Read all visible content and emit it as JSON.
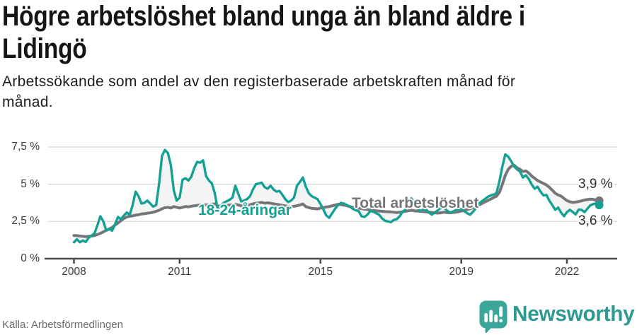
{
  "header": {
    "title_lines": [
      "Högre arbetslöshet bland unga än bland äldre i",
      "Lidingö"
    ],
    "subtitle_lines": [
      "Arbetssökande som andel av den registerbaserade arbetskraften månad för",
      "månad."
    ]
  },
  "footer": {
    "source": "Källa: Arbetsförmedlingen",
    "brand": "Newsworthy"
  },
  "colors": {
    "young": "#14a193",
    "total": "#75767a",
    "band_fill": "#f4f4f4",
    "grid": "#d8d8d8",
    "axis": "#4b4b4b",
    "logo_bubble": "#3aa69a",
    "logo_text": "#2d9a92"
  },
  "chart_data": {
    "type": "line",
    "title": "Högre arbetslöshet bland unga än bland äldre i Lidingö",
    "subtitle": "Arbetssökande som andel av den registerbaserade arbetskraften månad för månad.",
    "unit": "%",
    "x_start_year": 2008,
    "x_interval": "monthly",
    "grid": true,
    "ylim": [
      0,
      8.3
    ],
    "y_ticks": [
      {
        "label": "7,5 %",
        "value": 7.5
      },
      {
        "label": "5 %",
        "value": 5
      },
      {
        "label": "2,5 %",
        "value": 2.5
      },
      {
        "label": "0 %",
        "value": 0
      }
    ],
    "x_ticks": [
      {
        "label": "2008",
        "year": 2008
      },
      {
        "label": "2011",
        "year": 2011
      },
      {
        "label": "2015",
        "year": 2015
      },
      {
        "label": "2019",
        "year": 2019
      },
      {
        "label": "2022",
        "year": 2022
      }
    ],
    "series": [
      {
        "name": "18-24-åringar",
        "end_label": "3,6 %",
        "end_value": 3.6,
        "color": "#14a193",
        "values": [
          1.1,
          1.3,
          1.1,
          1.22,
          1.12,
          1.4,
          1.55,
          1.7,
          2.25,
          2.85,
          2.5,
          1.9,
          2.0,
          1.88,
          2.3,
          2.8,
          2.65,
          2.9,
          3.1,
          2.95,
          3.6,
          4.5,
          4.2,
          3.7,
          3.75,
          3.9,
          3.7,
          3.5,
          3.6,
          5.0,
          6.9,
          7.3,
          7.1,
          6.3,
          4.6,
          3.9,
          4.1,
          5.3,
          5.4,
          5.25,
          5.5,
          6.1,
          6.5,
          6.45,
          6.6,
          5.55,
          5.25,
          5.05,
          4.4,
          3.3,
          3.55,
          3.75,
          3.85,
          3.95,
          4.1,
          4.9,
          4.35,
          3.85,
          3.9,
          4.0,
          4.2,
          4.65,
          5.0,
          5.05,
          5.1,
          4.8,
          4.7,
          4.9,
          4.65,
          4.5,
          4.55,
          4.3,
          4.0,
          3.8,
          3.9,
          4.1,
          4.9,
          5.15,
          5.45,
          4.85,
          4.4,
          4.2,
          4.1,
          4.0,
          3.67,
          3.3,
          2.9,
          2.75,
          3.05,
          3.35,
          3.6,
          3.75,
          3.7,
          3.6,
          3.5,
          3.35,
          3.25,
          3.2,
          2.85,
          2.8,
          2.95,
          3.2,
          3.15,
          3.05,
          2.95,
          2.7,
          2.55,
          2.5,
          2.45,
          2.6,
          2.65,
          2.85,
          3.15,
          3.3,
          3.9,
          4.05,
          3.7,
          3.4,
          3.2,
          3.3,
          3.3,
          3.1,
          2.95,
          3.1,
          3.25,
          3.4,
          3.45,
          3.25,
          3.1,
          3.15,
          3.25,
          3.3,
          3.35,
          3.2,
          3.05,
          2.95,
          3.15,
          3.4,
          3.7,
          3.85,
          4.0,
          4.15,
          4.25,
          4.3,
          4.4,
          5.2,
          6.2,
          7.0,
          6.85,
          6.55,
          6.2,
          6.0,
          5.85,
          5.45,
          5.6,
          5.35,
          4.98,
          4.7,
          4.83,
          4.5,
          4.25,
          4.28,
          3.9,
          3.6,
          3.28,
          3.43,
          3.1,
          2.85,
          3.13,
          3.28,
          3.13,
          2.97,
          3.3,
          3.28,
          3.13,
          3.36,
          3.59,
          3.67,
          3.71,
          3.6
        ]
      },
      {
        "name": "Total arbetslöshet",
        "end_label": "3,9 %",
        "end_value": 3.9,
        "color": "#75767a",
        "values": [
          1.55,
          1.55,
          1.52,
          1.5,
          1.48,
          1.5,
          1.52,
          1.55,
          1.62,
          1.7,
          1.8,
          1.9,
          2.0,
          2.1,
          2.25,
          2.4,
          2.55,
          2.7,
          2.8,
          2.85,
          2.88,
          2.92,
          2.95,
          3.0,
          3.02,
          3.05,
          3.08,
          3.12,
          3.18,
          3.25,
          3.35,
          3.42,
          3.45,
          3.4,
          3.5,
          3.45,
          3.4,
          3.45,
          3.5,
          3.48,
          3.52,
          3.55,
          3.58,
          3.6,
          3.62,
          3.6,
          3.62,
          3.65,
          3.68,
          3.55,
          3.5,
          3.55,
          3.58,
          3.6,
          3.62,
          3.65,
          3.6,
          3.55,
          3.58,
          3.6,
          3.62,
          3.68,
          3.72,
          3.75,
          3.78,
          3.72,
          3.75,
          3.72,
          3.68,
          3.65,
          3.62,
          3.58,
          3.55,
          3.5,
          3.48,
          3.52,
          3.55,
          3.6,
          3.67,
          3.5,
          3.43,
          3.38,
          3.36,
          3.34,
          3.4,
          3.43,
          3.47,
          3.5,
          3.55,
          3.6,
          3.65,
          3.63,
          3.6,
          3.55,
          3.5,
          3.45,
          3.42,
          3.4,
          3.36,
          3.32,
          3.3,
          3.28,
          3.25,
          3.22,
          3.2,
          3.18,
          3.16,
          3.15,
          3.14,
          3.12,
          3.1,
          3.12,
          3.15,
          3.18,
          3.22,
          3.25,
          3.22,
          3.2,
          3.18,
          3.16,
          3.15,
          3.12,
          3.1,
          3.08,
          3.06,
          3.08,
          3.12,
          3.1,
          3.08,
          3.1,
          3.12,
          3.15,
          3.2,
          3.25,
          3.3,
          3.35,
          3.42,
          3.5,
          3.6,
          3.7,
          3.8,
          3.9,
          4.0,
          4.1,
          4.2,
          4.45,
          5.0,
          5.6,
          6.0,
          6.2,
          6.28,
          6.1,
          6.0,
          5.85,
          5.9,
          5.75,
          5.55,
          5.4,
          5.25,
          5.15,
          5.05,
          4.95,
          4.8,
          4.6,
          4.4,
          4.28,
          4.2,
          4.05,
          3.9,
          3.82,
          3.78,
          3.8,
          3.84,
          3.88,
          3.94,
          3.97,
          4.0,
          3.98,
          3.92,
          3.9
        ]
      }
    ],
    "legend_position": "inline-labels"
  }
}
